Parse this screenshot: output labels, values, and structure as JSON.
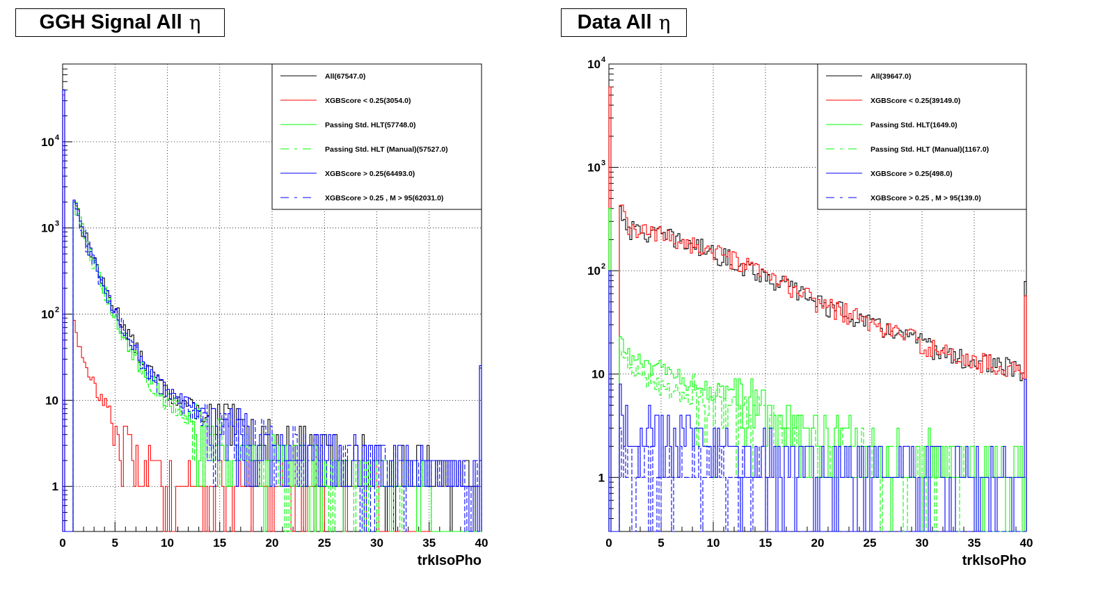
{
  "panels": [
    {
      "title": "GGH Signal All",
      "title_symbol": "η"
    },
    {
      "title": "Data All",
      "title_symbol": "η"
    }
  ],
  "chart_data": [
    {
      "type": "line",
      "title": "GGH Signal All η",
      "xlabel": "trkIsoPho",
      "ylabel": "",
      "xlim": [
        0,
        40
      ],
      "ylim": [
        0.3,
        80000
      ],
      "log_y": true,
      "grid": true,
      "legend_position": "top-right",
      "x_ticks": [
        0,
        5,
        10,
        15,
        20,
        25,
        30,
        35,
        40
      ],
      "y_ticks": [
        {
          "value": 1,
          "label": "1"
        },
        {
          "value": 10,
          "label": "10"
        },
        {
          "value": 100,
          "label": "10",
          "exp": "2"
        },
        {
          "value": 1000,
          "label": "10",
          "exp": "3"
        },
        {
          "value": 10000,
          "label": "10",
          "exp": "4"
        }
      ],
      "series": [
        {
          "name": "All(67547.0)",
          "color": "#000000",
          "dash": "solid",
          "spike": 40000,
          "x": [
            1,
            2,
            3,
            4,
            5,
            6,
            7,
            8,
            9,
            10,
            12,
            14,
            16,
            18,
            20,
            25,
            30,
            35,
            39.7,
            40
          ],
          "values": [
            2500,
            900,
            450,
            200,
            120,
            70,
            40,
            25,
            18,
            12,
            9,
            6,
            5,
            4,
            3,
            2.5,
            2,
            1.5,
            1,
            120
          ]
        },
        {
          "name": "XGBScore < 0.25(3054.0)",
          "color": "#ff0000",
          "dash": "solid",
          "spike": 35000,
          "x": [
            1,
            1.5,
            2,
            3,
            4,
            5,
            6,
            7,
            8,
            10,
            12,
            14,
            16,
            18,
            20,
            25,
            30
          ],
          "values": [
            110,
            50,
            25,
            15,
            10,
            5,
            3,
            2,
            1.8,
            1.2,
            1,
            1,
            1,
            1,
            1,
            1,
            1
          ]
        },
        {
          "name": "Passing Std. HLT(57748.0)",
          "color": "#00ff00",
          "dash": "solid",
          "x": [
            1,
            2,
            3,
            4,
            5,
            6,
            7,
            8,
            9,
            10,
            12,
            14,
            16,
            18,
            20,
            25,
            30,
            35
          ],
          "values": [
            2400,
            850,
            400,
            180,
            100,
            55,
            30,
            20,
            14,
            10,
            7,
            4,
            3,
            2.5,
            2,
            1.5,
            1.2,
            1
          ]
        },
        {
          "name": "Passing Std. HLT (Manual)(57527.0)",
          "color": "#00ff00",
          "dash": "dashed",
          "x": [
            1,
            2,
            3,
            4,
            5,
            6,
            7,
            8,
            9,
            10,
            12,
            14,
            16,
            18,
            20,
            25,
            30,
            35
          ],
          "values": [
            2350,
            830,
            390,
            175,
            95,
            52,
            28,
            19,
            13,
            9,
            6.5,
            4,
            3,
            2.3,
            2,
            1.4,
            1.1,
            1
          ]
        },
        {
          "name": "XGBScore > 0.25(64493.0)",
          "color": "#0000ff",
          "dash": "solid",
          "spike": 40000,
          "x": [
            1,
            2,
            3,
            4,
            5,
            6,
            7,
            8,
            9,
            10,
            12,
            14,
            16,
            18,
            20,
            25,
            30,
            35,
            39.7,
            40
          ],
          "values": [
            2450,
            880,
            430,
            190,
            115,
            65,
            38,
            24,
            17,
            12,
            9,
            6,
            5,
            4,
            3,
            2.5,
            2,
            1.5,
            1,
            120
          ]
        },
        {
          "name": "XGBScore > 0.25 , M > 95(62031.0)",
          "color": "#0000ff",
          "dash": "dashed",
          "x": [
            1,
            2,
            3,
            4,
            5,
            6,
            7,
            8,
            9,
            10,
            12,
            14,
            16,
            18,
            20,
            25,
            30,
            35,
            39.7
          ],
          "values": [
            2300,
            840,
            410,
            180,
            110,
            62,
            36,
            22,
            16,
            11,
            8,
            5.5,
            4.5,
            3.5,
            3,
            2.2,
            1.8,
            1.4,
            1
          ]
        }
      ]
    },
    {
      "type": "line",
      "title": "Data All η",
      "xlabel": "trkIsoPho",
      "ylabel": "",
      "xlim": [
        0,
        40
      ],
      "ylim": [
        0.3,
        10000
      ],
      "log_y": true,
      "grid": true,
      "legend_position": "top-right",
      "x_ticks": [
        0,
        5,
        10,
        15,
        20,
        25,
        30,
        35,
        40
      ],
      "y_ticks": [
        {
          "value": 1,
          "label": "1"
        },
        {
          "value": 10,
          "label": "10"
        },
        {
          "value": 100,
          "label": "10",
          "exp": "2"
        },
        {
          "value": 1000,
          "label": "10",
          "exp": "3"
        },
        {
          "value": 10000,
          "label": "10",
          "exp": "4"
        }
      ],
      "series": [
        {
          "name": "All(39647.0)",
          "color": "#000000",
          "dash": "solid",
          "spike": 6000,
          "x": [
            1,
            2,
            3,
            4,
            5,
            6,
            7,
            8,
            9,
            10,
            12,
            14,
            16,
            18,
            20,
            22,
            24,
            26,
            28,
            30,
            32,
            34,
            36,
            38,
            39.7,
            40
          ],
          "values": [
            420,
            250,
            240,
            230,
            220,
            210,
            195,
            180,
            165,
            150,
            125,
            100,
            80,
            65,
            50,
            42,
            35,
            28,
            25,
            20,
            16,
            14,
            13,
            12,
            10,
            180
          ]
        },
        {
          "name": "XGBScore < 0.25(39149.0)",
          "color": "#ff0000",
          "dash": "solid",
          "spike": 6000,
          "x": [
            1,
            2,
            3,
            4,
            5,
            6,
            7,
            8,
            9,
            10,
            12,
            14,
            16,
            18,
            20,
            22,
            24,
            26,
            28,
            30,
            32,
            34,
            36,
            38,
            39.7,
            40
          ],
          "values": [
            420,
            250,
            240,
            230,
            220,
            210,
            195,
            180,
            165,
            150,
            125,
            100,
            80,
            65,
            50,
            42,
            35,
            28,
            25,
            20,
            16,
            14,
            13,
            12,
            10,
            180
          ]
        },
        {
          "name": "Passing Std. HLT(1649.0)",
          "color": "#00ff00",
          "dash": "solid",
          "spike": 400,
          "x": [
            1,
            2,
            3,
            4,
            5,
            6,
            7,
            8,
            9,
            10,
            12,
            14,
            16,
            18,
            20,
            25,
            30,
            35,
            39.7
          ],
          "values": [
            22,
            15,
            13,
            12,
            11,
            10,
            9,
            8,
            7.5,
            7,
            6,
            5,
            4,
            3,
            2.5,
            2,
            1.5,
            1.2,
            1
          ]
        },
        {
          "name": "Passing Std. HLT (Manual)(1167.0)",
          "color": "#00ff00",
          "dash": "dashed",
          "x": [
            1,
            2,
            3,
            4,
            5,
            6,
            7,
            8,
            9,
            10,
            12,
            14,
            16,
            18,
            20,
            25,
            30,
            35
          ],
          "values": [
            16,
            11,
            10,
            9,
            8,
            7,
            6.5,
            6,
            5.5,
            5,
            4,
            3.5,
            3,
            2.5,
            2,
            1.5,
            1.2,
            1
          ]
        },
        {
          "name": "XGBScore > 0.25(498.0)",
          "color": "#0000ff",
          "dash": "solid",
          "spike": 100,
          "x": [
            1,
            2,
            3,
            4,
            5,
            6,
            7,
            8,
            10,
            12,
            15,
            20,
            25,
            30,
            35,
            39.7,
            40
          ],
          "values": [
            6,
            4,
            3.5,
            3,
            3,
            2.5,
            2.5,
            2,
            2,
            1.8,
            1.5,
            1.3,
            1.2,
            1.1,
            1,
            1,
            20
          ]
        },
        {
          "name": "XGBScore > 0.25 , M > 95(139.0)",
          "color": "#0000ff",
          "dash": "dashed",
          "x": [
            1,
            2,
            3,
            4,
            5,
            6,
            8,
            10,
            12,
            15
          ],
          "values": [
            2,
            1.5,
            1.3,
            1.2,
            1.1,
            1,
            1,
            1,
            1,
            1
          ]
        }
      ]
    }
  ]
}
